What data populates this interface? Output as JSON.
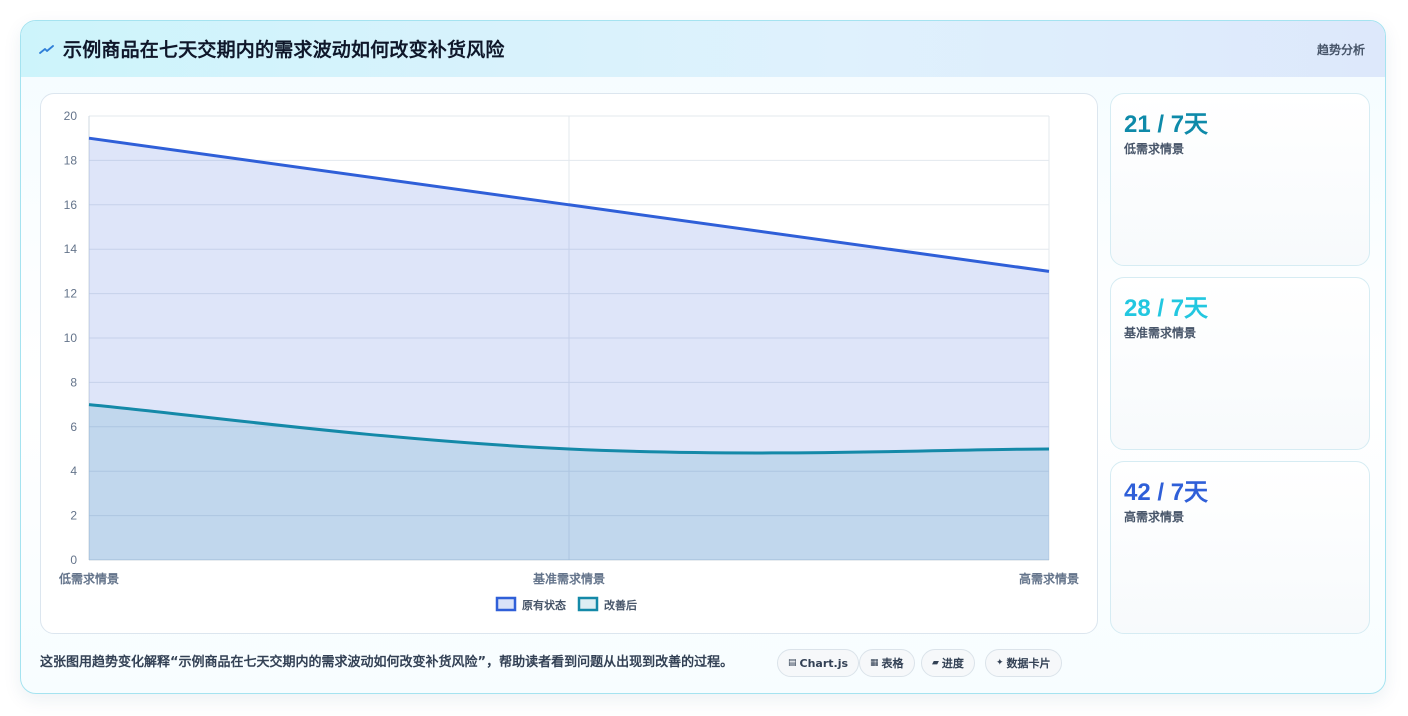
{
  "header": {
    "title": "示例商品在七天交期内的需求波动如何改变补货风险",
    "tag": "趋势分析",
    "icon": "trend-icon"
  },
  "colors": {
    "series_original": "#2f5fd8",
    "series_improved": "#1489a8",
    "stat_low": "#0e8aa9",
    "stat_base": "#22c7e0",
    "stat_high": "#2f5fd8"
  },
  "chart_data": {
    "type": "area",
    "categories": [
      "低需求情景",
      "基准需求情景",
      "高需求情景"
    ],
    "series": [
      {
        "name": "原有状态",
        "values": [
          19,
          16,
          13
        ]
      },
      {
        "name": "改善后",
        "values": [
          7,
          5,
          5
        ]
      }
    ],
    "ylim": [
      0,
      20
    ],
    "yticks": [
      "0",
      "2",
      "4",
      "6",
      "8",
      "10",
      "12",
      "14",
      "16",
      "18",
      "20"
    ],
    "grid": true,
    "legend": "bottom"
  },
  "stats": [
    {
      "value": "21 / 7天",
      "label": "低需求情景"
    },
    {
      "value": "28 / 7天",
      "label": "基准需求情景"
    },
    {
      "value": "42 / 7天",
      "label": "高需求情景"
    }
  ],
  "footer": {
    "caption": "这张图用趋势变化解释“示例商品在七天交期内的需求波动如何改变补货风险”，帮助读者看到问题从出现到改善的过程。",
    "chips": [
      {
        "label": "Chart.js",
        "icon": "chart-icon"
      },
      {
        "label": "表格",
        "icon": "table-icon"
      },
      {
        "label": "进度",
        "icon": "progress-icon"
      },
      {
        "label": "数据卡片",
        "icon": "sparkle-icon"
      }
    ]
  }
}
